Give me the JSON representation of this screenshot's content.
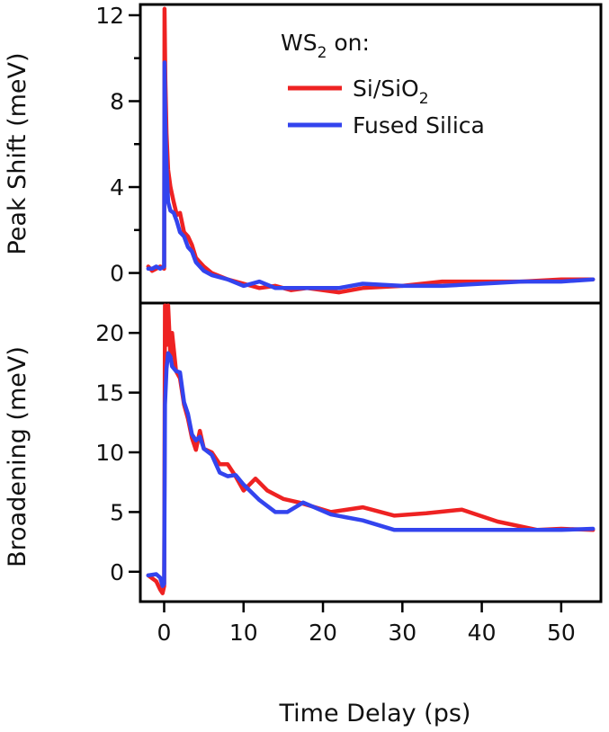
{
  "chart_data": [
    {
      "id": "peak_shift",
      "type": "line",
      "xlabel": "Time Delay (ps)",
      "ylabel": "Peak Shift (meV)",
      "xlim": [
        -3,
        55
      ],
      "ylim": [
        -1.4,
        12.5
      ],
      "yticks": [
        0,
        4,
        8,
        12
      ],
      "yticks_minor": [
        2,
        6,
        10
      ],
      "legend": {
        "title_main": "WS",
        "title_sub": "2",
        "title_tail": " on:",
        "placement": "top-right"
      },
      "series": [
        {
          "name": "Si/SiO2",
          "label_main": "Si/SiO",
          "label_sub": "2",
          "color": "#ee2222",
          "x": [
            -2,
            -1.5,
            -1,
            -0.5,
            0,
            0.05,
            0.15,
            0.3,
            0.5,
            0.8,
            1.2,
            1.6,
            2,
            2.5,
            3,
            3.5,
            4,
            5,
            6,
            8,
            10,
            12,
            14,
            16,
            18,
            22,
            25,
            30,
            35,
            40,
            45,
            50,
            54
          ],
          "y": [
            0.3,
            0.1,
            0.2,
            0.3,
            0.2,
            12.3,
            9,
            6.5,
            4.8,
            4,
            3.3,
            2.7,
            2.8,
            1.9,
            1.7,
            1.3,
            0.7,
            0.3,
            0,
            -0.3,
            -0.5,
            -0.7,
            -0.6,
            -0.8,
            -0.7,
            -0.9,
            -0.7,
            -0.6,
            -0.4,
            -0.4,
            -0.4,
            -0.3,
            -0.3
          ]
        },
        {
          "name": "Fused Silica",
          "label_main": "Fused Silica",
          "label_sub": "",
          "color": "#3344ee",
          "x": [
            -2,
            -1.5,
            -1,
            -0.5,
            0,
            0.05,
            0.15,
            0.3,
            0.5,
            0.8,
            1.2,
            1.6,
            2,
            2.5,
            3,
            3.5,
            4,
            5,
            6,
            8,
            10,
            12,
            14,
            16,
            18,
            22,
            25,
            30,
            35,
            40,
            45,
            50,
            54
          ],
          "y": [
            0.2,
            0.2,
            0.3,
            0.2,
            0.3,
            9.8,
            7,
            5,
            3.3,
            2.9,
            2.8,
            2.4,
            1.9,
            1.7,
            1.2,
            1,
            0.5,
            0.1,
            -0.1,
            -0.3,
            -0.6,
            -0.4,
            -0.7,
            -0.7,
            -0.7,
            -0.7,
            -0.5,
            -0.6,
            -0.6,
            -0.5,
            -0.4,
            -0.4,
            -0.3
          ]
        }
      ]
    },
    {
      "id": "broadening",
      "type": "line",
      "xlabel": "Time Delay (ps)",
      "ylabel": "Broadening (meV)",
      "xlim": [
        -3,
        55
      ],
      "ylim": [
        -2.5,
        22.5
      ],
      "yticks": [
        0,
        5,
        10,
        15,
        20
      ],
      "xticks": [
        0,
        10,
        20,
        30,
        40,
        50
      ],
      "series": [
        {
          "name": "Si/SiO2",
          "color": "#ee2222",
          "x": [
            -2,
            -1,
            -0.5,
            -0.2,
            0,
            0.1,
            0.3,
            0.5,
            0.8,
            1,
            1.5,
            2,
            2.5,
            3,
            3.5,
            4,
            4.5,
            5,
            6,
            7,
            8,
            9,
            10,
            11.5,
            13,
            15,
            17,
            21,
            25,
            29,
            33,
            37.5,
            42,
            47,
            50,
            54
          ],
          "y": [
            -0.3,
            -0.8,
            -1.5,
            -1.8,
            -1.2,
            22.3,
            19,
            22.3,
            18,
            20,
            16.8,
            16.2,
            14,
            12.8,
            11.2,
            10.2,
            11.8,
            10.3,
            10,
            9,
            9,
            8,
            6.8,
            7.8,
            6.8,
            6.1,
            5.8,
            5,
            5.4,
            4.7,
            4.9,
            5.2,
            4.2,
            3.5,
            3.6,
            3.5
          ]
        },
        {
          "name": "Fused Silica",
          "color": "#3344ee",
          "x": [
            -2,
            -1,
            -0.5,
            -0.2,
            0,
            0.1,
            0.3,
            0.5,
            0.8,
            1,
            1.5,
            2,
            2.5,
            3,
            3.5,
            4,
            4.5,
            5,
            6,
            7,
            8,
            9,
            10,
            12,
            14,
            15.5,
            17.5,
            21,
            25,
            29,
            33,
            37.5,
            42,
            47,
            50,
            54
          ],
          "y": [
            -0.3,
            -0.2,
            -0.5,
            -1.2,
            -1,
            14,
            17,
            18.3,
            18,
            17.2,
            16.8,
            16.7,
            14.2,
            13.2,
            11.5,
            11,
            11.3,
            10.3,
            9.8,
            8.3,
            8,
            8.1,
            7.3,
            6,
            5,
            5,
            5.8,
            4.8,
            4.3,
            3.5,
            3.5,
            3.5,
            3.5,
            3.5,
            3.5,
            3.6
          ]
        }
      ]
    }
  ]
}
